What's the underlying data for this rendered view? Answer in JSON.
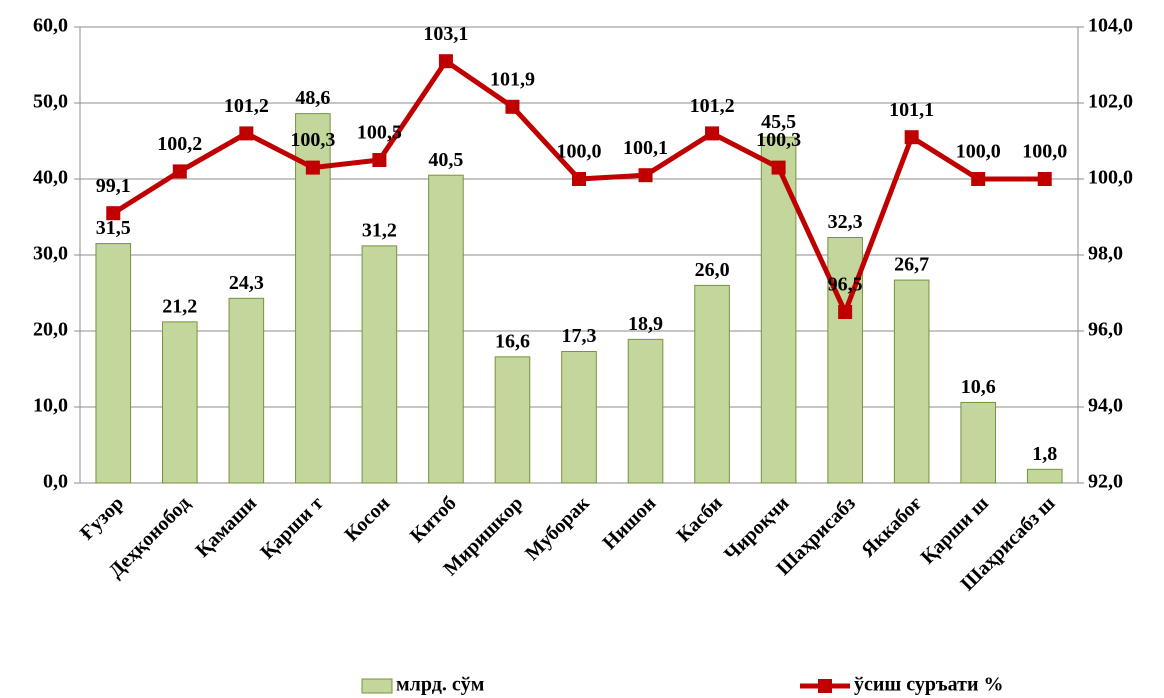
{
  "chart_data": {
    "type": "bar_line",
    "categories": [
      "Ғузор",
      "Деҳқонобод",
      "Қамаши",
      "Қарши т",
      "Косон",
      "Китоб",
      "Миришкор",
      "Муборак",
      "Нишон",
      "Касби",
      "Чироқчи",
      "Шаҳрисабз",
      "Яккабоғ",
      "Қарши ш",
      "Шаҳрисабз ш"
    ],
    "series": [
      {
        "name": "млрд. сўм",
        "type": "bar",
        "color": "#c3d69b",
        "edge": "#77933c",
        "values": [
          31.5,
          21.2,
          24.3,
          48.6,
          31.2,
          40.5,
          16.6,
          17.3,
          18.9,
          26.0,
          45.5,
          32.3,
          26.7,
          10.6,
          1.8
        ],
        "value_labels": [
          "31,5",
          "21,2",
          "24,3",
          "48,6",
          "31,2",
          "40,5",
          "16,6",
          "17,3",
          "18,9",
          "26,0",
          "45,5",
          "32,3",
          "26,7",
          "10,6",
          "1,8"
        ]
      },
      {
        "name": "ўсиш суръати %",
        "type": "line",
        "axis": "y2",
        "color": "#c00000",
        "values": [
          99.1,
          100.2,
          101.2,
          100.3,
          100.5,
          103.1,
          101.9,
          100.0,
          100.1,
          101.2,
          100.3,
          96.5,
          101.1,
          100.0,
          100.0
        ],
        "value_labels": [
          "99,1",
          "100,2",
          "101,2",
          "100,3",
          "100,5",
          "103,1",
          "101,9",
          "100,0",
          "100,1",
          "101,2",
          "100,3",
          "96,5",
          "101,1",
          "100,0",
          "100,0"
        ]
      }
    ],
    "ylim": [
      0,
      60
    ],
    "yticks": [
      {
        "value": 0,
        "label": "0,0"
      },
      {
        "value": 10,
        "label": "10,0"
      },
      {
        "value": 20,
        "label": "20,0"
      },
      {
        "value": 30,
        "label": "30,0"
      },
      {
        "value": 40,
        "label": "40,0"
      },
      {
        "value": 50,
        "label": "50,0"
      },
      {
        "value": 60,
        "label": "60,0"
      }
    ],
    "y2lim": [
      92,
      104
    ],
    "y2ticks": [
      {
        "value": 92,
        "label": "92,0"
      },
      {
        "value": 94,
        "label": "94,0"
      },
      {
        "value": 96,
        "label": "96,0"
      },
      {
        "value": 98,
        "label": "98,0"
      },
      {
        "value": 100,
        "label": "100,0"
      },
      {
        "value": 102,
        "label": "102,0"
      },
      {
        "value": 104,
        "label": "104,0"
      }
    ],
    "grid": true,
    "legend": "bottom"
  }
}
